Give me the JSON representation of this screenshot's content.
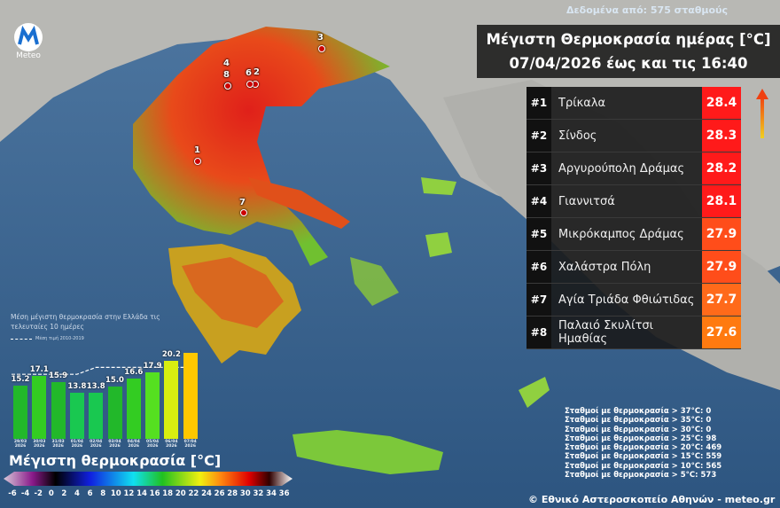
{
  "header": {
    "source": "Δεδομένα από: 575 σταθμούς",
    "title_line1": "Μέγιστη Θερμοκρασία ημέρας [°C]",
    "title_line2": "07/04/2026 έως και τις 16:40",
    "logo_text": "Meteo"
  },
  "ranking": [
    {
      "rank": "#1",
      "station": "Τρίκαλα",
      "value": "28.4",
      "color": "#ff1a1a"
    },
    {
      "rank": "#2",
      "station": "Σίνδος",
      "value": "28.3",
      "color": "#ff1a1a"
    },
    {
      "rank": "#3",
      "station": "Αργυρούπολη Δράμας",
      "value": "28.2",
      "color": "#ff1a1a"
    },
    {
      "rank": "#4",
      "station": "Γιαννιτσά",
      "value": "28.1",
      "color": "#ff1a1a"
    },
    {
      "rank": "#5",
      "station": "Μικρόκαμπος Δράμας",
      "value": "27.9",
      "color": "#ff4d1a"
    },
    {
      "rank": "#6",
      "station": "Χαλάστρα Πόλη",
      "value": "27.9",
      "color": "#ff4d1a"
    },
    {
      "rank": "#7",
      "station": "Αγία Τριάδα Φθιώτιδας",
      "value": "27.7",
      "color": "#ff6a1a"
    },
    {
      "rank": "#8",
      "station": "Παλαιό Σκυλίτσι Ημαθίας",
      "value": "27.6",
      "color": "#ff7a10"
    }
  ],
  "map_markers": [
    "1",
    "2",
    "3",
    "4",
    "6",
    "7",
    "8"
  ],
  "chart_data": {
    "type": "bar",
    "title": "Μέση μέγιστη θερμοκρασία στην Ελλάδα τις τελευταίες 10 ημέρες",
    "legend": "Μέση τιμή 2010-2019",
    "categories": [
      "29/03 2026",
      "30/03 2026",
      "31/03 2026",
      "01/04 2026",
      "02/04 2026",
      "03/04 2026",
      "04/04 2026",
      "05/04 2026",
      "06/04 2026",
      "07/04 2026"
    ],
    "values": [
      15.2,
      17.1,
      15.9,
      13.8,
      13.8,
      15.0,
      16.6,
      17.9,
      20.2,
      21.8
    ],
    "labels": [
      "15.2",
      "17.1",
      "15.9",
      "13.8",
      "13.8",
      "15.0",
      "16.6",
      "17.9",
      "20.2",
      ""
    ],
    "climatology": [
      17.5,
      17.5,
      17.5,
      17.5,
      18.9,
      18.9,
      18.9,
      18.9,
      18.9,
      18.9
    ],
    "bar_colors": [
      "#22b82a",
      "#33cc22",
      "#22b82a",
      "#19c850",
      "#19c850",
      "#22b82a",
      "#33cc22",
      "#55e020",
      "#d8ee10",
      "#ffc800"
    ]
  },
  "colorbar": {
    "title": "Μέγιστη θερμοκρασία [°C]",
    "ticks": [
      "-6",
      "-4",
      "-2",
      "0",
      "2",
      "4",
      "6",
      "8",
      "10",
      "12",
      "14",
      "16",
      "18",
      "20",
      "22",
      "24",
      "26",
      "28",
      "30",
      "32",
      "34",
      "36"
    ]
  },
  "stats": [
    "Σταθμοί με θερμοκρασία > 37°C: 0",
    "Σταθμοί με θερμοκρασία > 35°C: 0",
    "Σταθμοί με θερμοκρασία > 30°C: 0",
    "Σταθμοί με θερμοκρασία > 25°C: 98",
    "Σταθμοί με θερμοκρασία > 20°C: 469",
    "Σταθμοί με θερμοκρασία > 15°C: 559",
    "Σταθμοί με θερμοκρασία > 10°C: 565",
    "Σταθμοί με θερμοκρασία > 5°C: 573"
  ],
  "copyright": "© Εθνικό Αστεροσκοπείο Αθηνών - meteo.gr"
}
